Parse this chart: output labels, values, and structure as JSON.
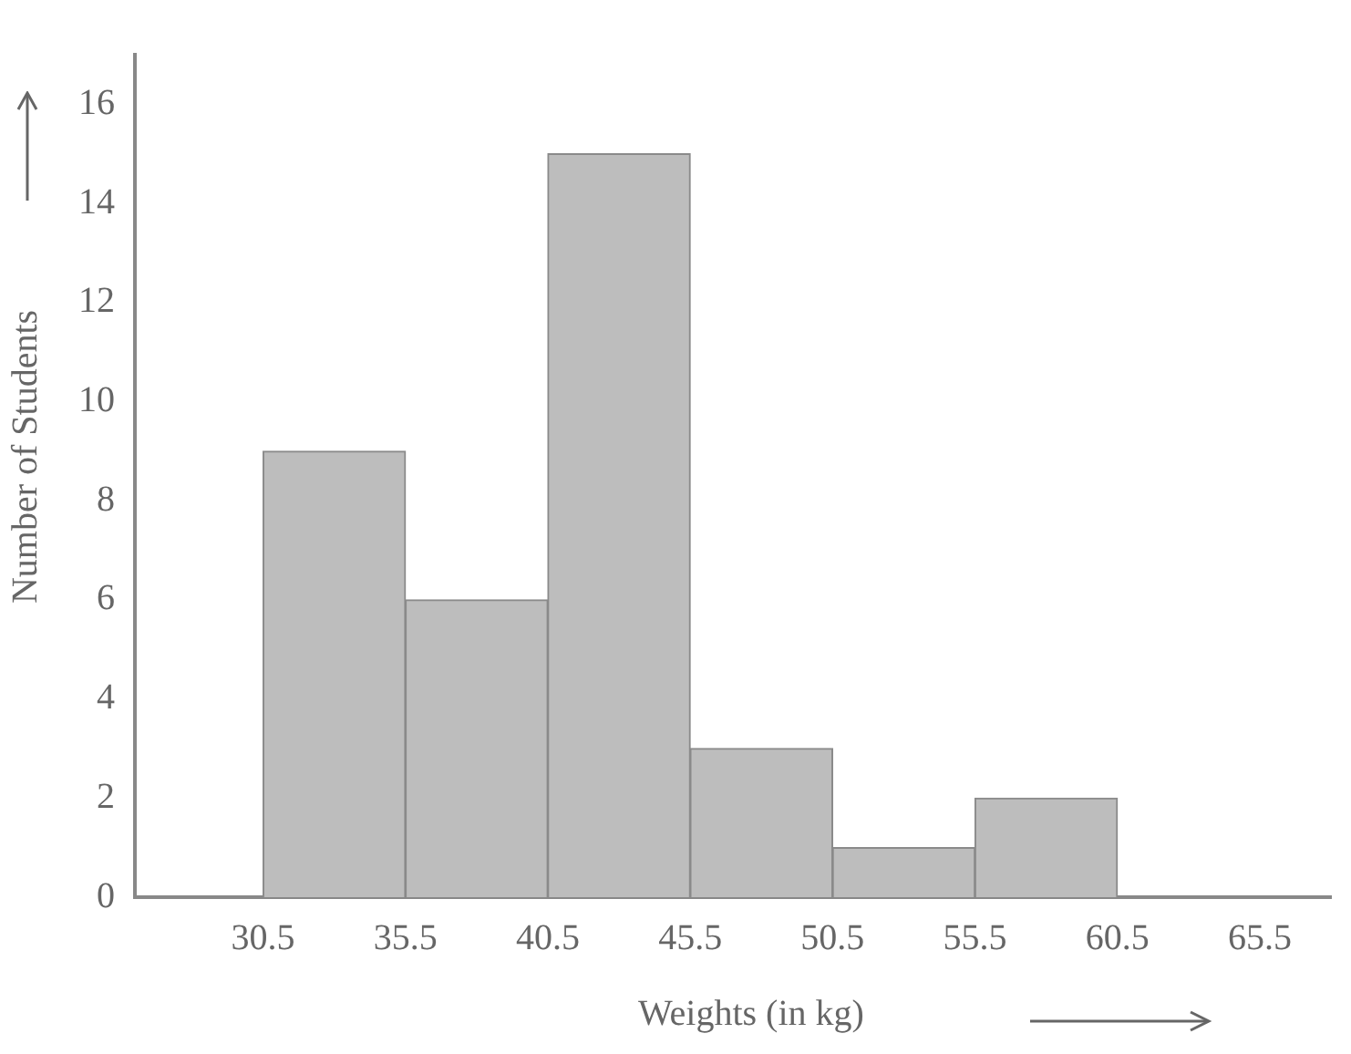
{
  "chart_data": {
    "type": "histogram",
    "xlabel": "Weights (in kg)",
    "ylabel": "Number of Students",
    "bins": [
      30.5,
      35.5,
      40.5,
      45.5,
      50.5,
      55.5,
      60.5
    ],
    "values": [
      9,
      6,
      15,
      3,
      1,
      2
    ],
    "color": "#bdbdbd",
    "xlim": [
      26,
      68
    ],
    "xticks": [
      30.5,
      35.5,
      40.5,
      45.5,
      50.5,
      55.5,
      60.5,
      65.5
    ],
    "ylim": [
      0,
      17
    ],
    "yticks": [
      0,
      2,
      4,
      6,
      8,
      10,
      12,
      14,
      16
    ],
    "grid": false,
    "legend": false
  }
}
